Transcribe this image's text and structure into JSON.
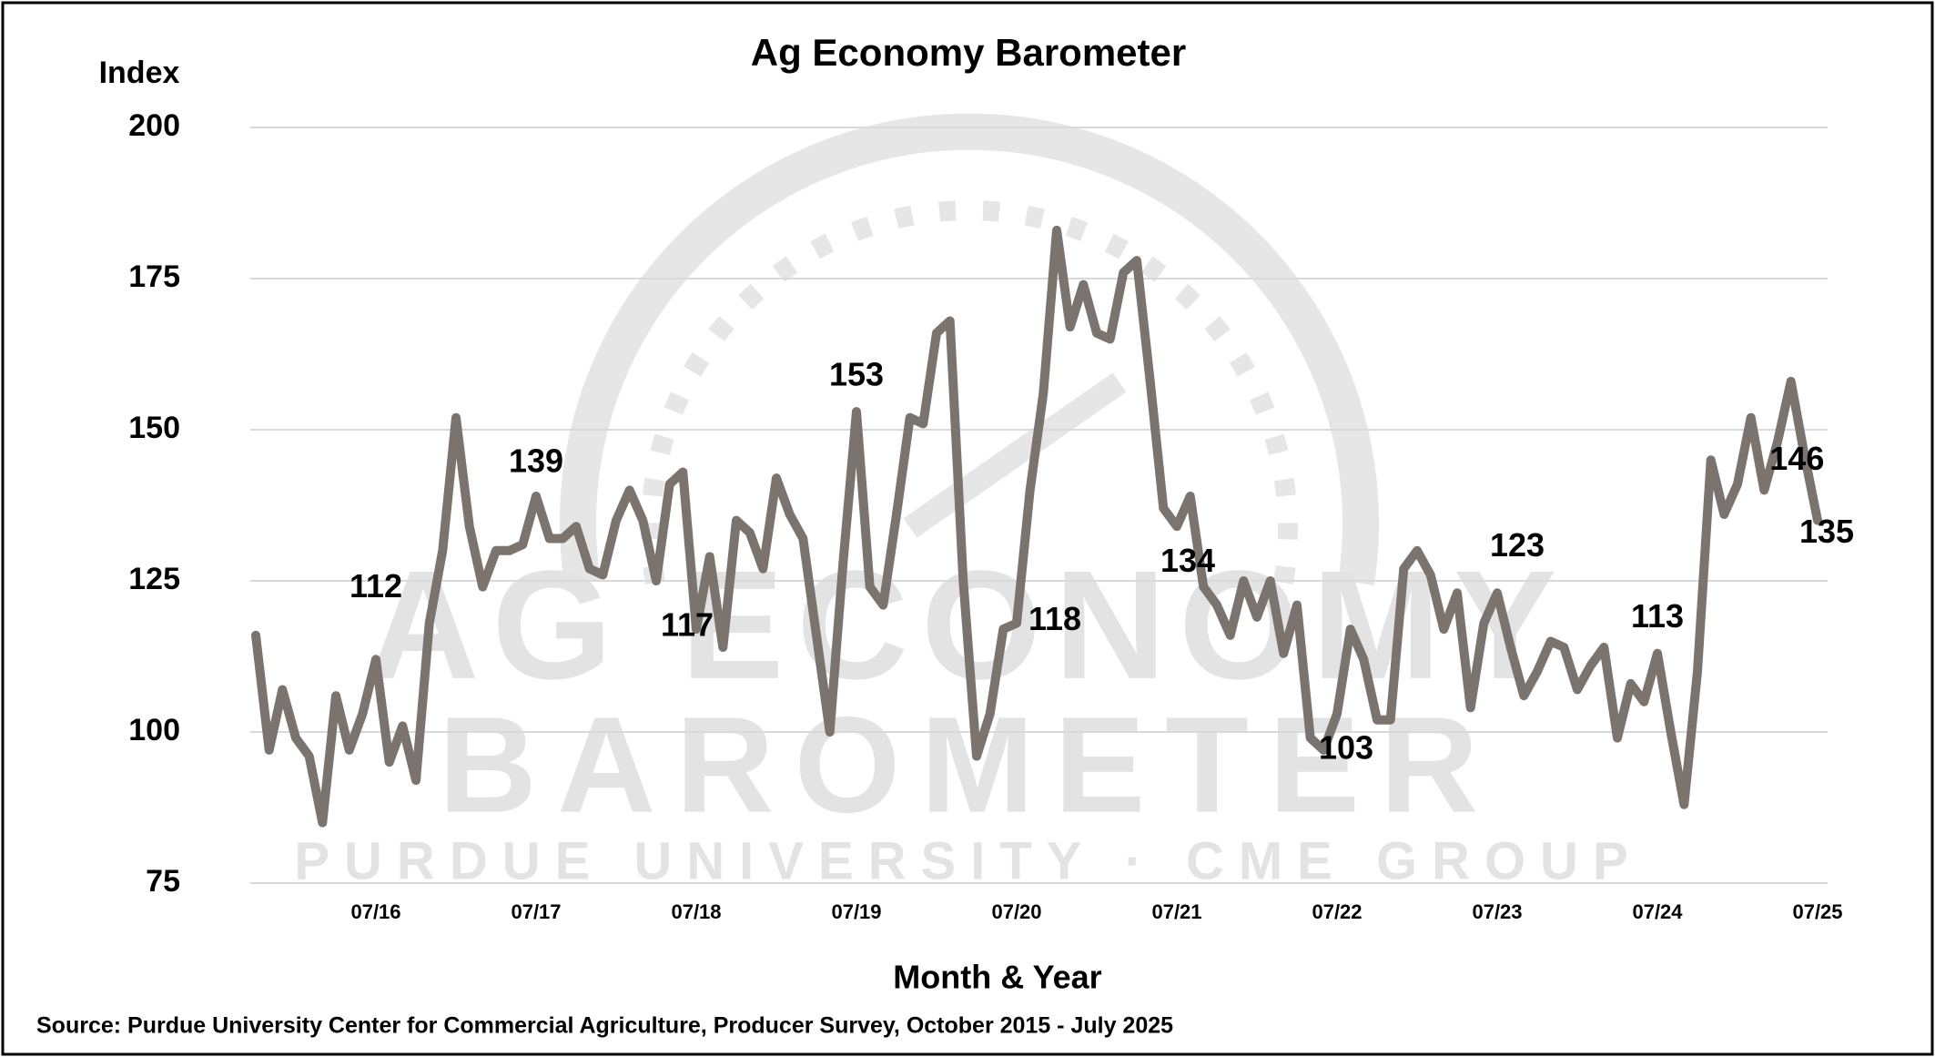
{
  "chart_data": {
    "type": "line",
    "title": "Ag Economy Barometer",
    "y_axis_label": "Index",
    "x_axis_label": "Month & Year",
    "source": "Source: Purdue University Center for Commercial Agriculture, Producer Survey, October 2015 - July 2025",
    "watermark": [
      "AG ECONOMY",
      "BAROMETER",
      "PURDUE UNIVERSITY · CME GROUP"
    ],
    "categories": [
      null,
      null,
      null,
      null,
      null,
      null,
      null,
      null,
      null,
      "07/16",
      null,
      null,
      null,
      null,
      null,
      null,
      null,
      null,
      null,
      null,
      null,
      "07/17",
      null,
      null,
      null,
      null,
      null,
      null,
      null,
      null,
      null,
      null,
      null,
      "07/18",
      null,
      null,
      null,
      null,
      null,
      null,
      null,
      null,
      null,
      null,
      null,
      "07/19",
      null,
      null,
      null,
      null,
      null,
      null,
      null,
      null,
      null,
      null,
      null,
      "07/20",
      null,
      null,
      null,
      null,
      null,
      null,
      null,
      null,
      null,
      null,
      null,
      "07/21",
      null,
      null,
      null,
      null,
      null,
      null,
      null,
      null,
      null,
      null,
      null,
      "07/22",
      null,
      null,
      null,
      null,
      null,
      null,
      null,
      null,
      null,
      null,
      null,
      "07/23",
      null,
      null,
      null,
      null,
      null,
      null,
      null,
      null,
      null,
      null,
      null,
      "07/24",
      null,
      null,
      null,
      null,
      null,
      null,
      null,
      null,
      null,
      null,
      null,
      "07/25"
    ],
    "series": [
      {
        "name": "Index",
        "color": "#7b736e",
        "values": [
          116,
          97,
          107,
          99,
          96,
          85,
          106,
          97,
          103,
          112,
          95,
          101,
          92,
          118,
          130,
          152,
          134,
          124,
          130,
          130,
          131,
          139,
          132,
          132,
          134,
          127,
          126,
          135,
          140,
          135,
          125,
          141,
          143,
          117,
          129,
          114,
          135,
          133,
          127,
          142,
          136,
          132,
          116,
          100,
          128,
          153,
          124,
          121,
          136,
          152,
          151,
          166,
          168,
          125,
          96,
          103,
          117,
          118,
          140,
          156,
          183,
          167,
          174,
          166,
          165,
          176,
          178,
          158,
          137,
          134,
          139,
          124,
          121,
          116,
          125,
          119,
          125,
          113,
          121,
          99,
          97,
          103,
          117,
          112,
          102,
          102,
          127,
          130,
          126,
          117,
          123,
          104,
          118,
          123,
          114,
          106,
          110,
          115,
          114,
          107,
          111,
          114,
          99,
          108,
          105,
          113,
          100,
          88,
          110,
          145,
          136,
          141,
          152,
          140,
          148,
          158,
          146,
          135
        ],
        "value_labels": [
          null,
          null,
          null,
          null,
          null,
          null,
          null,
          null,
          null,
          "112",
          null,
          null,
          null,
          null,
          null,
          null,
          null,
          null,
          null,
          null,
          null,
          "139",
          null,
          null,
          null,
          null,
          null,
          null,
          null,
          null,
          null,
          null,
          null,
          "117",
          null,
          null,
          null,
          null,
          null,
          null,
          null,
          null,
          null,
          null,
          null,
          "153",
          null,
          null,
          null,
          null,
          null,
          null,
          null,
          null,
          null,
          null,
          null,
          "118",
          null,
          null,
          null,
          null,
          null,
          null,
          null,
          null,
          null,
          null,
          null,
          "134",
          null,
          null,
          null,
          null,
          null,
          null,
          null,
          null,
          null,
          null,
          null,
          "103",
          null,
          null,
          null,
          null,
          null,
          null,
          null,
          null,
          null,
          null,
          null,
          "123",
          null,
          null,
          null,
          null,
          null,
          null,
          null,
          null,
          null,
          null,
          null,
          "113",
          null,
          null,
          null,
          null,
          null,
          null,
          null,
          null,
          null,
          null,
          "146",
          "135"
        ]
      }
    ],
    "ylim": [
      75,
      200
    ],
    "yticks": [
      75,
      100,
      125,
      150,
      175,
      200
    ],
    "grid": true
  }
}
